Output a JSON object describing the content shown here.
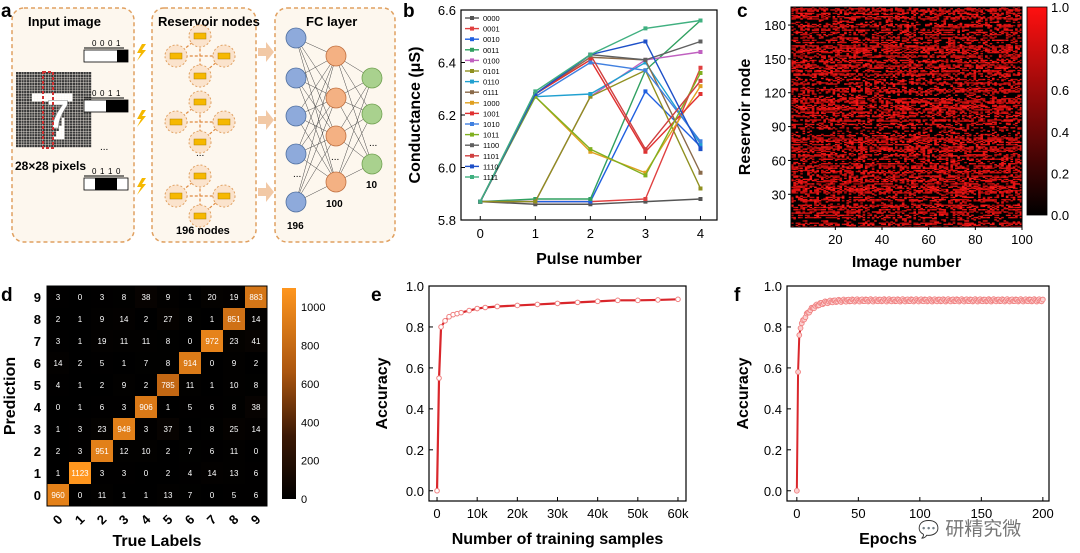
{
  "panel_labels": {
    "a": "a",
    "b": "b",
    "c": "c",
    "d": "d",
    "e": "e",
    "f": "f"
  },
  "watermark": "研精究微",
  "colors": {
    "box_border": "#e0a060",
    "box_fill": "#fdf7ee",
    "arrow": "#f2c9a6",
    "bolt": "#f5b800",
    "input_node": "#8eaadb",
    "hidden_node": "#f4b183",
    "output_node": "#a9d18e",
    "reservoir_node": "#fbe3cc",
    "device": "#f6b800",
    "curve_red": "#d9262b",
    "pink_dot": "#f08080"
  },
  "diagram": {
    "input_title": "Input image",
    "reservoir_title": "Reservoir nodes",
    "fc_title": "FC layer",
    "pixels_label": "28×28 pixels",
    "digit": "7",
    "pulse_codes": [
      [
        "0",
        "0",
        "0",
        "1"
      ],
      [
        "0",
        "0",
        "1",
        "1"
      ],
      [
        "0",
        "1",
        "1",
        "0"
      ]
    ],
    "ellipsis": "...",
    "nodes_label": "196 nodes",
    "layer_sizes": [
      "196",
      "100",
      "10"
    ]
  },
  "chart_data": [
    {
      "id": "b",
      "type": "line",
      "xlabel": "Pulse number",
      "ylabel": "Conductance (μS)",
      "xlim": [
        0,
        4
      ],
      "ylim": [
        5.8,
        6.6
      ],
      "xticks": [
        "0",
        "1",
        "2",
        "3",
        "4"
      ],
      "yticks": [
        "5.8",
        "6.0",
        "6.2",
        "6.4",
        "6.6"
      ],
      "legend_position": "top-left",
      "series": [
        {
          "name": "0000",
          "color": "#555555",
          "values": [
            5.87,
            5.86,
            5.86,
            5.87,
            5.88
          ]
        },
        {
          "name": "0001",
          "color": "#e04040",
          "values": [
            5.87,
            5.87,
            5.87,
            5.88,
            6.38
          ]
        },
        {
          "name": "0010",
          "color": "#2060e0",
          "values": [
            5.87,
            5.87,
            5.87,
            6.29,
            6.08
          ]
        },
        {
          "name": "0011",
          "color": "#30a060",
          "values": [
            5.87,
            5.88,
            5.88,
            6.37,
            6.56
          ]
        },
        {
          "name": "0100",
          "color": "#c060c0",
          "values": [
            5.87,
            5.87,
            6.27,
            6.41,
            6.44
          ]
        },
        {
          "name": "0101",
          "color": "#909020",
          "values": [
            5.87,
            5.87,
            6.27,
            6.37,
            5.92
          ]
        },
        {
          "name": "0110",
          "color": "#20a0d0",
          "values": [
            5.87,
            6.27,
            6.28,
            6.4,
            6.09
          ]
        },
        {
          "name": "0111",
          "color": "#8a6a4a",
          "values": [
            5.87,
            6.28,
            6.42,
            6.41,
            5.98
          ]
        },
        {
          "name": "1000",
          "color": "#e0a020",
          "values": [
            5.87,
            6.27,
            6.06,
            5.98,
            6.31
          ]
        },
        {
          "name": "1001",
          "color": "#e03030",
          "values": [
            5.87,
            6.28,
            6.41,
            6.06,
            6.28
          ]
        },
        {
          "name": "1010",
          "color": "#4080e0",
          "values": [
            5.87,
            6.27,
            6.4,
            6.37,
            6.1
          ]
        },
        {
          "name": "1011",
          "color": "#80b020",
          "values": [
            5.87,
            6.27,
            6.07,
            5.97,
            6.36
          ]
        },
        {
          "name": "1100",
          "color": "#606060",
          "values": [
            5.87,
            6.28,
            6.43,
            6.41,
            6.48
          ]
        },
        {
          "name": "1101",
          "color": "#d04040",
          "values": [
            5.87,
            6.28,
            6.43,
            6.07,
            6.33
          ]
        },
        {
          "name": "1110",
          "color": "#1e50c8",
          "values": [
            5.87,
            6.28,
            6.43,
            6.48,
            6.07
          ]
        },
        {
          "name": "1111",
          "color": "#40b080",
          "values": [
            5.87,
            6.29,
            6.43,
            6.53,
            6.56
          ]
        }
      ]
    },
    {
      "id": "c",
      "type": "heatmap",
      "xlabel": "Image number",
      "ylabel": "Reservoir node",
      "xlim": [
        1,
        100
      ],
      "ylim": [
        1,
        196
      ],
      "xticks": [
        "20",
        "40",
        "60",
        "80",
        "100"
      ],
      "yticks": [
        "30",
        "60",
        "90",
        "120",
        "150",
        "180"
      ],
      "colorbar_ticks": [
        "0.0",
        "0.2",
        "0.4",
        "0.6",
        "0.8",
        "1.0"
      ],
      "colorbar_range": [
        0,
        1
      ]
    },
    {
      "id": "d",
      "type": "heatmap",
      "xlabel": "True Labels",
      "ylabel": "Prediction",
      "labels": [
        "0",
        "1",
        "2",
        "3",
        "4",
        "5",
        "6",
        "7",
        "8",
        "9"
      ],
      "colorbar_ticks": [
        "0",
        "200",
        "400",
        "600",
        "800",
        "1000"
      ],
      "colorbar_range": [
        0,
        1100
      ],
      "matrix_rows_pred_0_to_9": [
        [
          960,
          0,
          11,
          1,
          1,
          13,
          7,
          0,
          5,
          6
        ],
        [
          1,
          1123,
          3,
          3,
          0,
          2,
          4,
          14,
          13,
          6
        ],
        [
          2,
          3,
          951,
          12,
          10,
          2,
          7,
          6,
          11,
          0
        ],
        [
          1,
          3,
          23,
          948,
          3,
          37,
          1,
          8,
          25,
          14
        ],
        [
          0,
          1,
          6,
          3,
          906,
          1,
          5,
          6,
          8,
          38
        ],
        [
          4,
          1,
          2,
          9,
          2,
          785,
          11,
          1,
          10,
          8
        ],
        [
          14,
          2,
          5,
          1,
          7,
          8,
          914,
          0,
          9,
          2
        ],
        [
          3,
          1,
          19,
          11,
          11,
          8,
          0,
          972,
          23,
          41
        ],
        [
          2,
          1,
          9,
          14,
          2,
          27,
          8,
          1,
          851,
          14
        ],
        [
          3,
          0,
          3,
          8,
          38,
          9,
          1,
          20,
          19,
          883
        ]
      ]
    },
    {
      "id": "e",
      "type": "line",
      "xlabel": "Number of training samples",
      "ylabel": "Accuracy",
      "xlim": [
        -2000,
        62000
      ],
      "ylim": [
        -0.05,
        1.0
      ],
      "xticks": [
        "0",
        "10k",
        "20k",
        "30k",
        "40k",
        "50k",
        "60k"
      ],
      "yticks": [
        "0.0",
        "0.2",
        "0.4",
        "0.6",
        "0.8",
        "1.0"
      ],
      "x": [
        0,
        500,
        1000,
        2000,
        3000,
        4000,
        5000,
        6000,
        8000,
        10000,
        12000,
        15000,
        20000,
        25000,
        30000,
        35000,
        40000,
        45000,
        50000,
        55000,
        60000
      ],
      "values": [
        0.0,
        0.55,
        0.8,
        0.83,
        0.85,
        0.86,
        0.865,
        0.87,
        0.88,
        0.89,
        0.895,
        0.9,
        0.905,
        0.91,
        0.915,
        0.92,
        0.925,
        0.93,
        0.93,
        0.932,
        0.935
      ]
    },
    {
      "id": "f",
      "type": "line",
      "xlabel": "Epochs",
      "ylabel": "Accuracy",
      "xlim": [
        -8,
        205
      ],
      "ylim": [
        -0.05,
        1.0
      ],
      "xticks": [
        "0",
        "50",
        "100",
        "150",
        "200"
      ],
      "yticks": [
        "0.0",
        "0.2",
        "0.4",
        "0.6",
        "0.8",
        "1.0"
      ]
    }
  ]
}
